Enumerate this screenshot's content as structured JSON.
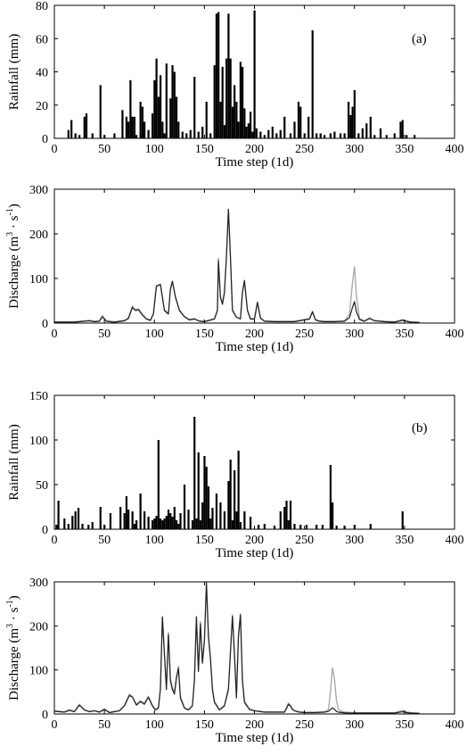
{
  "chart_data": [
    {
      "type": "bar",
      "panel_tag": "(a)",
      "title": "",
      "xlabel": "Time step (1d)",
      "ylabel": "Rainfall (mm)",
      "xlim": [
        0,
        400
      ],
      "ylim": [
        0,
        80
      ],
      "xticks": [
        0,
        50,
        100,
        150,
        200,
        250,
        300,
        350,
        400
      ],
      "yticks": [
        0,
        20,
        40,
        60,
        80
      ],
      "x": [
        14,
        17,
        21,
        25,
        30,
        32,
        38,
        46,
        50,
        60,
        68,
        72,
        74,
        76,
        78,
        80,
        82,
        86,
        88,
        90,
        94,
        98,
        100,
        102,
        104,
        106,
        108,
        110,
        112,
        116,
        118,
        120,
        122,
        124,
        128,
        132,
        136,
        140,
        144,
        148,
        152,
        156,
        160,
        162,
        164,
        166,
        168,
        170,
        172,
        174,
        176,
        178,
        180,
        182,
        184,
        186,
        188,
        190,
        192,
        194,
        196,
        198,
        200,
        202,
        206,
        210,
        214,
        218,
        222,
        226,
        230,
        236,
        240,
        244,
        246,
        250,
        254,
        258,
        262,
        266,
        270,
        276,
        280,
        286,
        290,
        294,
        296,
        298,
        300,
        304,
        308,
        312,
        316,
        320,
        326,
        332,
        340,
        346,
        348,
        352,
        360
      ],
      "values": [
        5,
        11,
        3,
        2,
        13,
        15,
        3,
        32,
        2,
        3,
        17,
        13,
        10,
        35,
        13,
        13,
        2,
        22,
        19,
        10,
        5,
        15,
        35,
        48,
        25,
        38,
        10,
        3,
        45,
        24,
        44,
        40,
        25,
        10,
        4,
        3,
        5,
        37,
        4,
        7,
        22,
        3,
        44,
        75,
        76,
        22,
        43,
        8,
        48,
        75,
        48,
        19,
        32,
        22,
        10,
        46,
        43,
        18,
        7,
        9,
        16,
        4,
        77,
        6,
        4,
        2,
        5,
        7,
        3,
        5,
        13,
        3,
        10,
        22,
        19,
        3,
        13,
        65,
        3,
        3,
        2,
        3,
        4,
        3,
        3,
        22,
        14,
        19,
        29,
        3,
        6,
        9,
        13,
        2,
        6,
        2,
        3,
        10,
        11,
        2,
        2
      ]
    },
    {
      "type": "line",
      "title": "",
      "xlabel": "Time step (1d)",
      "ylabel": "Discharge (m3 · s-1)",
      "ylabel_parts": [
        "Discharge (m",
        "3",
        " · s",
        "-1",
        ")"
      ],
      "xlim": [
        0,
        400
      ],
      "ylim": [
        0,
        300
      ],
      "xticks": [
        0,
        50,
        100,
        150,
        200,
        250,
        300,
        350,
        400
      ],
      "yticks": [
        0,
        100,
        200,
        300
      ],
      "series": [
        {
          "color": "#aaaaaa",
          "x": [
            0,
            10,
            20,
            30,
            35,
            40,
            45,
            48,
            52,
            60,
            70,
            74,
            78,
            81,
            84,
            88,
            92,
            96,
            99,
            102,
            104,
            106,
            110,
            114,
            116,
            118,
            121,
            125,
            130,
            135,
            140,
            145,
            150,
            155,
            160,
            163,
            164,
            166,
            168,
            170,
            172,
            174,
            176,
            178,
            182,
            186,
            188,
            190,
            193,
            196,
            200,
            203,
            206,
            210,
            220,
            230,
            240,
            250,
            255,
            258,
            261,
            265,
            270,
            280,
            290,
            295,
            298,
            300,
            302,
            305,
            310,
            315,
            320,
            330,
            340,
            348,
            352,
            356,
            365
          ],
          "y": [
            3,
            3,
            3,
            5,
            6,
            4,
            5,
            17,
            5,
            3,
            6,
            12,
            38,
            30,
            32,
            20,
            10,
            7,
            22,
            85,
            86,
            88,
            30,
            22,
            78,
            95,
            60,
            30,
            15,
            8,
            10,
            5,
            4,
            7,
            10,
            30,
            145,
            60,
            45,
            70,
            150,
            255,
            150,
            30,
            14,
            10,
            70,
            96,
            30,
            10,
            10,
            48,
            12,
            5,
            4,
            4,
            4,
            8,
            10,
            27,
            8,
            5,
            4,
            4,
            5,
            20,
            90,
            126,
            60,
            10,
            5,
            12,
            6,
            4,
            3,
            8,
            5,
            3,
            2
          ]
        },
        {
          "color": "#222222",
          "x": [
            0,
            10,
            20,
            30,
            35,
            40,
            45,
            48,
            52,
            60,
            70,
            74,
            78,
            81,
            84,
            88,
            92,
            96,
            99,
            102,
            104,
            106,
            110,
            114,
            116,
            118,
            121,
            125,
            130,
            135,
            140,
            145,
            150,
            155,
            160,
            163,
            164,
            166,
            168,
            170,
            172,
            174,
            176,
            178,
            182,
            186,
            188,
            190,
            193,
            196,
            200,
            203,
            206,
            210,
            220,
            230,
            240,
            250,
            255,
            258,
            261,
            265,
            270,
            280,
            290,
            295,
            298,
            300,
            302,
            305,
            310,
            315,
            320,
            330,
            340,
            348,
            352,
            356,
            365
          ],
          "y": [
            2,
            2,
            2,
            4,
            5,
            3,
            4,
            14,
            4,
            2,
            5,
            10,
            35,
            28,
            30,
            18,
            9,
            6,
            20,
            82,
            84,
            86,
            28,
            20,
            75,
            93,
            58,
            28,
            14,
            7,
            9,
            4,
            3,
            6,
            9,
            28,
            140,
            58,
            42,
            68,
            148,
            255,
            148,
            28,
            13,
            9,
            68,
            95,
            28,
            9,
            9,
            46,
            11,
            4,
            3,
            3,
            3,
            7,
            9,
            25,
            7,
            4,
            3,
            3,
            4,
            12,
            35,
            48,
            25,
            8,
            4,
            10,
            5,
            3,
            2,
            6,
            4,
            2,
            1
          ]
        }
      ]
    },
    {
      "type": "bar",
      "panel_tag": "(b)",
      "title": "",
      "xlabel": "Time step (1d)",
      "ylabel": "Rainfall (mm)",
      "xlim": [
        0,
        400
      ],
      "ylim": [
        0,
        150
      ],
      "xticks": [
        0,
        50,
        100,
        150,
        200,
        250,
        300,
        350,
        400
      ],
      "yticks": [
        0,
        50,
        100,
        150
      ],
      "x": [
        2,
        4,
        10,
        14,
        18,
        21,
        24,
        28,
        34,
        38,
        46,
        50,
        56,
        66,
        70,
        72,
        74,
        78,
        80,
        82,
        86,
        90,
        94,
        98,
        100,
        102,
        104,
        106,
        108,
        110,
        112,
        114,
        116,
        118,
        120,
        122,
        124,
        126,
        130,
        134,
        138,
        140,
        142,
        144,
        146,
        148,
        150,
        152,
        154,
        156,
        158,
        162,
        166,
        170,
        174,
        176,
        178,
        180,
        182,
        184,
        186,
        190,
        196,
        204,
        210,
        220,
        226,
        230,
        232,
        234,
        236,
        240,
        246,
        252,
        262,
        268,
        276,
        278,
        282,
        290,
        300,
        316,
        348
      ],
      "values": [
        5,
        32,
        12,
        6,
        15,
        20,
        24,
        6,
        5,
        8,
        25,
        5,
        18,
        25,
        18,
        37,
        22,
        20,
        6,
        10,
        40,
        20,
        14,
        10,
        12,
        15,
        100,
        12,
        10,
        12,
        15,
        22,
        18,
        14,
        25,
        10,
        6,
        18,
        50,
        22,
        10,
        126,
        12,
        86,
        10,
        30,
        82,
        70,
        48,
        12,
        24,
        40,
        30,
        20,
        54,
        78,
        10,
        66,
        20,
        88,
        8,
        20,
        14,
        5,
        6,
        4,
        20,
        25,
        32,
        10,
        32,
        6,
        5,
        5,
        5,
        5,
        72,
        30,
        4,
        4,
        5,
        6,
        20
      ]
    },
    {
      "type": "line",
      "title": "",
      "xlabel": "Time step (1d)",
      "ylabel": "Discharge (m3 · s-1)",
      "ylabel_parts": [
        "Discharge (m",
        "3",
        " · s",
        "-1",
        ")"
      ],
      "xlim": [
        0,
        400
      ],
      "ylim": [
        0,
        300
      ],
      "xticks": [
        0,
        50,
        100,
        150,
        200,
        250,
        300,
        350,
        400
      ],
      "yticks": [
        0,
        100,
        200,
        300
      ],
      "series": [
        {
          "color": "#aaaaaa",
          "x": [
            0,
            5,
            10,
            15,
            20,
            25,
            30,
            35,
            40,
            45,
            50,
            55,
            60,
            65,
            70,
            75,
            78,
            82,
            86,
            90,
            94,
            98,
            101,
            104,
            106,
            108,
            110,
            112,
            114,
            116,
            118,
            120,
            122,
            124,
            126,
            130,
            134,
            138,
            140,
            142,
            144,
            146,
            148,
            150,
            152,
            154,
            156,
            158,
            160,
            165,
            170,
            174,
            178,
            180,
            182,
            184,
            186,
            188,
            190,
            195,
            200,
            210,
            220,
            225,
            230,
            232,
            234,
            236,
            238,
            240,
            245,
            250,
            260,
            270,
            274,
            276,
            278,
            280,
            282,
            284,
            288,
            292,
            300,
            310,
            320,
            330,
            340,
            348,
            352,
            356,
            365
          ],
          "y": [
            8,
            6,
            5,
            10,
            6,
            22,
            10,
            6,
            8,
            5,
            12,
            4,
            6,
            8,
            20,
            45,
            40,
            22,
            30,
            25,
            40,
            20,
            10,
            15,
            60,
            222,
            140,
            60,
            185,
            80,
            60,
            50,
            85,
            108,
            40,
            15,
            10,
            20,
            80,
            222,
            100,
            210,
            120,
            170,
            300,
            180,
            130,
            60,
            30,
            10,
            20,
            60,
            225,
            140,
            40,
            180,
            228,
            80,
            30,
            12,
            8,
            5,
            5,
            5,
            5,
            15,
            25,
            20,
            12,
            8,
            5,
            4,
            4,
            5,
            10,
            50,
            105,
            80,
            30,
            10,
            5,
            4,
            3,
            3,
            3,
            3,
            3,
            8,
            5,
            3,
            2
          ]
        },
        {
          "color": "#222222",
          "x": [
            0,
            5,
            10,
            15,
            20,
            25,
            30,
            35,
            40,
            45,
            50,
            55,
            60,
            65,
            70,
            75,
            78,
            82,
            86,
            90,
            94,
            98,
            101,
            104,
            106,
            108,
            110,
            112,
            114,
            116,
            118,
            120,
            122,
            124,
            126,
            130,
            134,
            138,
            140,
            142,
            144,
            146,
            148,
            150,
            152,
            154,
            156,
            158,
            160,
            165,
            170,
            174,
            178,
            180,
            182,
            184,
            186,
            188,
            190,
            195,
            200,
            210,
            220,
            225,
            230,
            232,
            234,
            236,
            238,
            240,
            245,
            250,
            260,
            270,
            274,
            276,
            278,
            280,
            282,
            284,
            288,
            292,
            300,
            310,
            320,
            330,
            340,
            348,
            352,
            356,
            365
          ],
          "y": [
            6,
            5,
            4,
            8,
            5,
            20,
            9,
            5,
            7,
            4,
            10,
            3,
            5,
            7,
            18,
            42,
            38,
            20,
            28,
            22,
            38,
            18,
            9,
            13,
            55,
            220,
            135,
            55,
            180,
            75,
            55,
            45,
            80,
            104,
            36,
            13,
            9,
            18,
            75,
            220,
            96,
            205,
            115,
            165,
            298,
            175,
            125,
            55,
            26,
            9,
            18,
            55,
            222,
            135,
            36,
            175,
            225,
            75,
            26,
            10,
            7,
            4,
            4,
            4,
            4,
            12,
            22,
            18,
            10,
            7,
            4,
            3,
            3,
            4,
            6,
            10,
            14,
            10,
            6,
            4,
            3,
            2,
            2,
            2,
            2,
            2,
            2,
            5,
            3,
            2,
            1
          ]
        }
      ]
    }
  ]
}
